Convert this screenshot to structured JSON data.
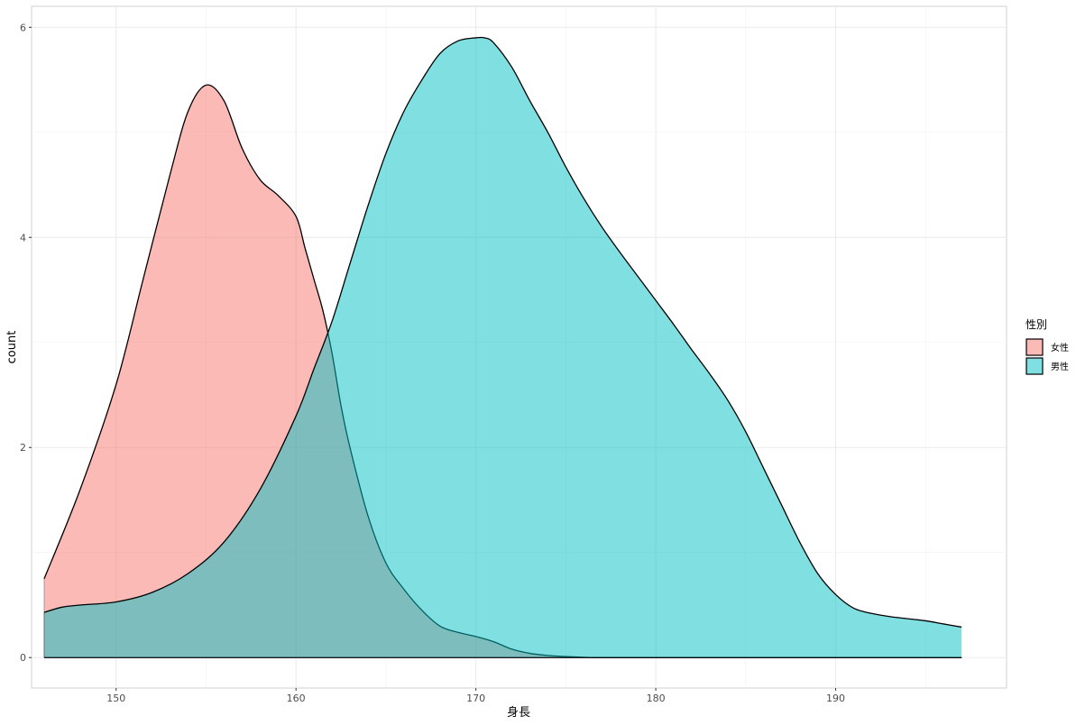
{
  "chart_data": {
    "type": "area",
    "title": "",
    "xlabel": "身長",
    "ylabel": "count",
    "xlim": [
      145.3,
      199.5
    ],
    "ylim": [
      -0.29,
      6.2
    ],
    "x_ticks": [
      "150",
      "160",
      "170",
      "180",
      "190"
    ],
    "x_tick_values": [
      150,
      160,
      170,
      180,
      190
    ],
    "y_ticks": [
      "0",
      "2",
      "4",
      "6"
    ],
    "y_tick_values": [
      0,
      2,
      4,
      6
    ],
    "grid": true,
    "legend": {
      "title": "性別",
      "position": "right"
    },
    "series": [
      {
        "name": "女性",
        "color": "#f8766d",
        "x": [
          146,
          148,
          150,
          151.5,
          153,
          154,
          155,
          156,
          157,
          158,
          159,
          160,
          160.5,
          161,
          161.5,
          162,
          162.5,
          163,
          164,
          165,
          166,
          167,
          168,
          169,
          170,
          171,
          172,
          173,
          174,
          175,
          176,
          177,
          180,
          185,
          190,
          195,
          197
        ],
        "values": [
          0.75,
          1.6,
          2.6,
          3.6,
          4.6,
          5.2,
          5.45,
          5.3,
          4.85,
          4.55,
          4.4,
          4.2,
          3.9,
          3.6,
          3.3,
          2.9,
          2.4,
          2.0,
          1.35,
          0.9,
          0.65,
          0.45,
          0.3,
          0.24,
          0.2,
          0.15,
          0.08,
          0.04,
          0.02,
          0.01,
          0.003,
          0,
          0,
          0,
          0,
          0,
          0
        ]
      },
      {
        "name": "男性",
        "color": "#00bfc4",
        "x": [
          146,
          147,
          148,
          150,
          152,
          154,
          156,
          158,
          160,
          161,
          162,
          163,
          164,
          165,
          166,
          167,
          168,
          169,
          170,
          170.5,
          171,
          172,
          173,
          174,
          175,
          176,
          177,
          178,
          179,
          180,
          181,
          182,
          183,
          184,
          185,
          186,
          187,
          188,
          189,
          190,
          191,
          192,
          193,
          194,
          195,
          196,
          197
        ],
        "values": [
          0.43,
          0.48,
          0.5,
          0.53,
          0.62,
          0.8,
          1.1,
          1.6,
          2.3,
          2.75,
          3.2,
          3.75,
          4.3,
          4.8,
          5.2,
          5.5,
          5.75,
          5.87,
          5.9,
          5.9,
          5.85,
          5.62,
          5.3,
          5.0,
          4.67,
          4.37,
          4.1,
          3.86,
          3.63,
          3.4,
          3.17,
          2.93,
          2.7,
          2.45,
          2.15,
          1.8,
          1.45,
          1.1,
          0.8,
          0.6,
          0.47,
          0.42,
          0.39,
          0.37,
          0.35,
          0.32,
          0.29
        ]
      }
    ]
  }
}
